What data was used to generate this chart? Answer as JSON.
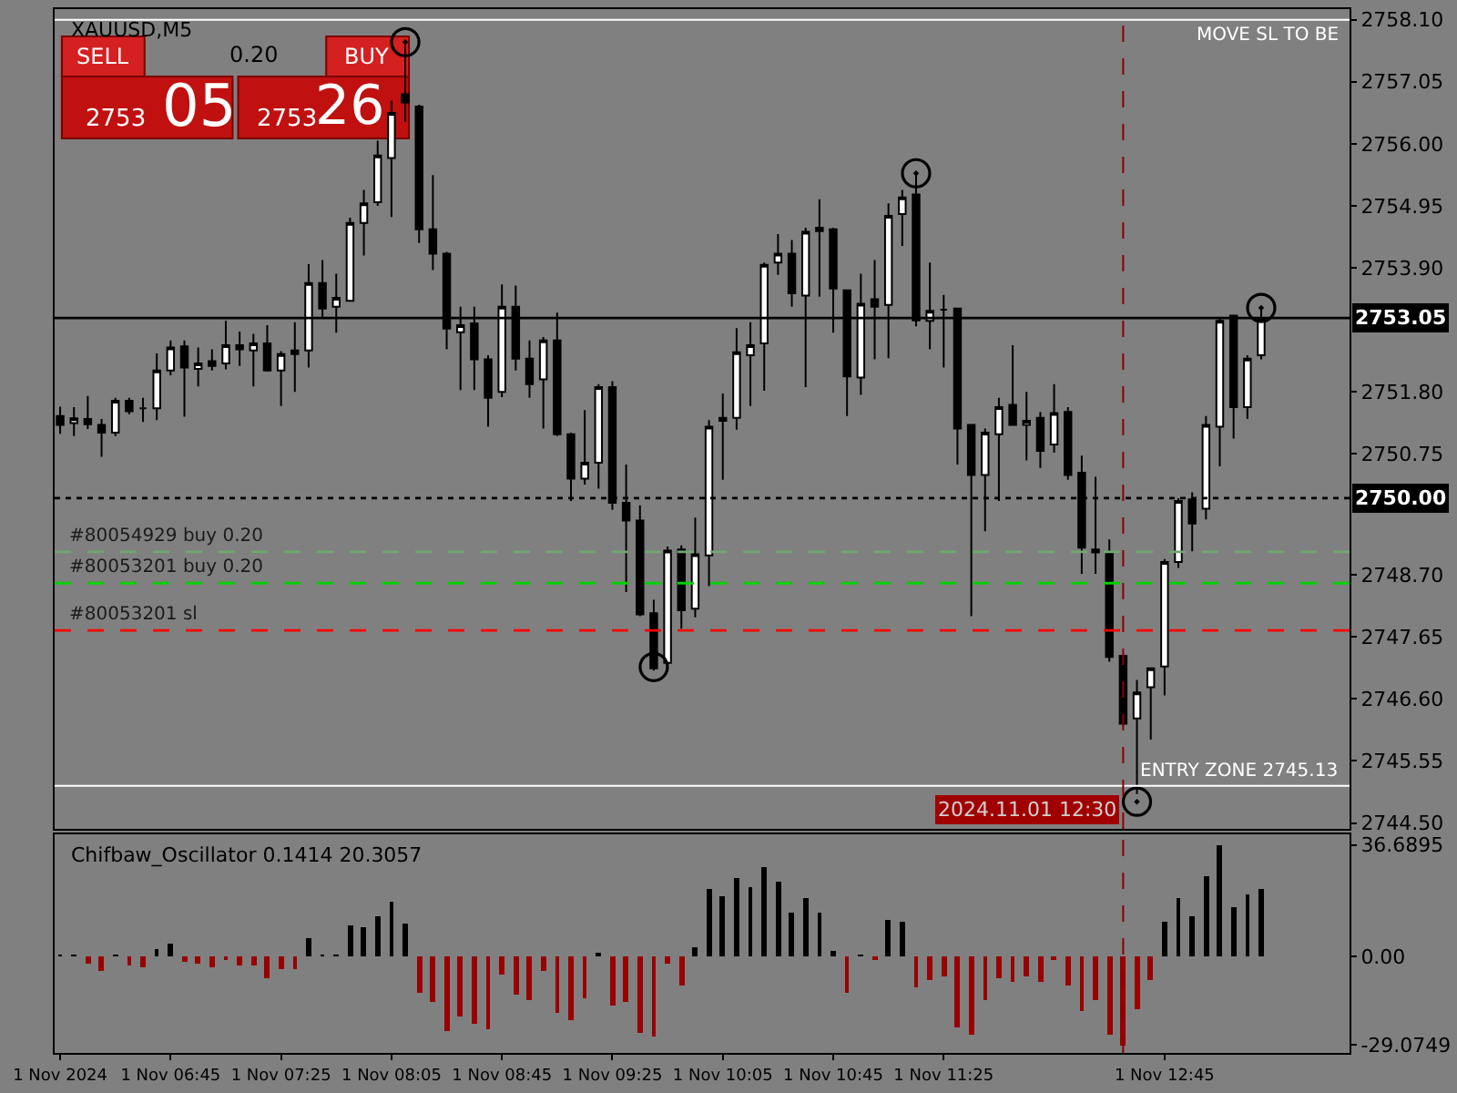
{
  "chart_data": [
    {
      "type": "candlestick",
      "title": "XAUUSD,M5",
      "x": [
        "2024-11-01T06:05",
        "2024-11-01T06:10",
        "2024-11-01T06:15",
        "2024-11-01T06:20",
        "2024-11-01T06:25",
        "2024-11-01T06:30",
        "2024-11-01T06:35",
        "2024-11-01T06:40",
        "2024-11-01T06:45",
        "2024-11-01T06:50",
        "2024-11-01T06:55",
        "2024-11-01T07:00",
        "2024-11-01T07:05",
        "2024-11-01T07:10",
        "2024-11-01T07:15",
        "2024-11-01T07:20",
        "2024-11-01T07:25",
        "2024-11-01T07:30",
        "2024-11-01T07:35",
        "2024-11-01T07:40",
        "2024-11-01T07:45",
        "2024-11-01T07:50",
        "2024-11-01T07:55",
        "2024-11-01T08:00",
        "2024-11-01T08:05",
        "2024-11-01T08:10",
        "2024-11-01T08:15",
        "2024-11-01T08:20",
        "2024-11-01T08:25",
        "2024-11-01T08:30",
        "2024-11-01T08:35",
        "2024-11-01T08:40",
        "2024-11-01T08:45",
        "2024-11-01T08:50",
        "2024-11-01T08:55",
        "2024-11-01T09:00",
        "2024-11-01T09:05",
        "2024-11-01T09:10",
        "2024-11-01T09:15",
        "2024-11-01T09:20",
        "2024-11-01T09:25",
        "2024-11-01T09:30",
        "2024-11-01T09:35",
        "2024-11-01T09:40",
        "2024-11-01T09:45",
        "2024-11-01T09:50",
        "2024-11-01T09:55",
        "2024-11-01T10:00",
        "2024-11-01T10:05",
        "2024-11-01T10:10",
        "2024-11-01T10:15",
        "2024-11-01T10:20",
        "2024-11-01T10:25",
        "2024-11-01T10:30",
        "2024-11-01T10:35",
        "2024-11-01T10:40",
        "2024-11-01T10:45",
        "2024-11-01T10:50",
        "2024-11-01T10:55",
        "2024-11-01T11:00",
        "2024-11-01T11:05",
        "2024-11-01T11:10",
        "2024-11-01T11:15",
        "2024-11-01T11:20",
        "2024-11-01T11:25",
        "2024-11-01T11:30",
        "2024-11-01T11:35",
        "2024-11-01T11:40",
        "2024-11-01T11:45",
        "2024-11-01T11:50",
        "2024-11-01T11:55",
        "2024-11-01T12:00",
        "2024-11-01T12:05",
        "2024-11-01T12:10",
        "2024-11-01T12:15",
        "2024-11-01T12:20",
        "2024-11-01T12:25",
        "2024-11-01T12:30",
        "2024-11-01T12:35",
        "2024-11-01T12:40",
        "2024-11-01T12:45",
        "2024-11-01T12:50",
        "2024-11-01T12:55",
        "2024-11-01T13:00",
        "2024-11-01T13:05",
        "2024-11-01T13:10",
        "2024-11-01T13:15",
        "2024-11-01T13:20"
      ],
      "ohlc": [
        [
          2751.39,
          2751.55,
          2751.09,
          2751.24
        ],
        [
          2751.27,
          2751.54,
          2751.05,
          2751.35
        ],
        [
          2751.34,
          2751.73,
          2751.17,
          2751.25
        ],
        [
          2751.24,
          2751.34,
          2750.7,
          2751.11
        ],
        [
          2751.11,
          2751.7,
          2751.05,
          2751.65
        ],
        [
          2751.65,
          2751.7,
          2751.42,
          2751.47
        ],
        [
          2751.52,
          2751.7,
          2751.29,
          2751.52
        ],
        [
          2751.52,
          2752.45,
          2751.32,
          2752.16
        ],
        [
          2752.16,
          2752.67,
          2752.08,
          2752.55
        ],
        [
          2752.57,
          2752.67,
          2751.38,
          2752.21
        ],
        [
          2752.19,
          2752.55,
          2751.89,
          2752.28
        ],
        [
          2752.32,
          2752.52,
          2752.16,
          2752.24
        ],
        [
          2752.28,
          2753.0,
          2752.18,
          2752.59
        ],
        [
          2752.59,
          2752.82,
          2752.24,
          2752.52
        ],
        [
          2752.5,
          2752.78,
          2751.89,
          2752.62
        ],
        [
          2752.62,
          2752.93,
          2752.14,
          2752.16
        ],
        [
          2752.16,
          2752.49,
          2751.56,
          2752.44
        ],
        [
          2752.44,
          2752.98,
          2751.8,
          2752.5
        ],
        [
          2752.5,
          2753.96,
          2752.21,
          2753.64
        ],
        [
          2753.64,
          2754.03,
          2753.06,
          2753.21
        ],
        [
          2753.24,
          2753.8,
          2752.8,
          2753.39
        ],
        [
          2753.34,
          2754.75,
          2753.34,
          2754.66
        ],
        [
          2754.66,
          2755.22,
          2754.11,
          2754.99
        ],
        [
          2755.01,
          2756.05,
          2754.95,
          2755.8
        ],
        [
          2755.76,
          2756.73,
          2754.76,
          2756.52
        ],
        [
          2756.84,
          2757.69,
          2756.37,
          2756.7
        ],
        [
          2756.63,
          2756.66,
          2754.32,
          2754.55
        ],
        [
          2754.55,
          2755.47,
          2753.86,
          2754.14
        ],
        [
          2754.14,
          2754.17,
          2752.52,
          2752.87
        ],
        [
          2752.81,
          2753.24,
          2751.83,
          2752.93
        ],
        [
          2752.96,
          2753.24,
          2751.83,
          2752.35
        ],
        [
          2752.35,
          2752.42,
          2751.21,
          2751.7
        ],
        [
          2751.8,
          2753.62,
          2751.71,
          2753.24
        ],
        [
          2753.24,
          2753.6,
          2752.16,
          2752.36
        ],
        [
          2752.36,
          2752.67,
          2751.7,
          2751.93
        ],
        [
          2752.01,
          2752.73,
          2751.18,
          2752.67
        ],
        [
          2752.67,
          2753.14,
          2751.05,
          2751.08
        ],
        [
          2751.08,
          2751.11,
          2749.95,
          2750.33
        ],
        [
          2750.33,
          2751.49,
          2750.23,
          2750.6
        ],
        [
          2750.6,
          2751.93,
          2750.16,
          2751.88
        ],
        [
          2751.88,
          2751.98,
          2749.8,
          2749.92
        ],
        [
          2749.92,
          2750.57,
          2748.41,
          2749.62
        ],
        [
          2749.62,
          2749.88,
          2748.0,
          2748.03
        ],
        [
          2748.05,
          2748.28,
          2747.08,
          2747.12
        ],
        [
          2747.21,
          2749.18,
          2747.18,
          2749.11
        ],
        [
          2749.13,
          2749.2,
          2747.79,
          2748.1
        ],
        [
          2748.13,
          2749.67,
          2747.98,
          2749.05
        ],
        [
          2749.03,
          2751.32,
          2748.51,
          2751.21
        ],
        [
          2751.31,
          2751.77,
          2750.31,
          2751.36
        ],
        [
          2751.36,
          2752.88,
          2751.16,
          2752.47
        ],
        [
          2752.42,
          2752.98,
          2751.56,
          2752.59
        ],
        [
          2752.62,
          2753.99,
          2751.82,
          2753.95
        ],
        [
          2753.99,
          2754.47,
          2753.78,
          2754.14
        ],
        [
          2754.14,
          2754.37,
          2753.24,
          2753.47
        ],
        [
          2753.43,
          2754.58,
          2751.88,
          2754.51
        ],
        [
          2754.58,
          2755.06,
          2753.41,
          2754.52
        ],
        [
          2754.55,
          2754.58,
          2752.8,
          2753.55
        ],
        [
          2753.52,
          2753.52,
          2751.39,
          2752.06
        ],
        [
          2752.04,
          2753.8,
          2751.75,
          2753.29
        ],
        [
          2753.37,
          2754.03,
          2752.35,
          2753.24
        ],
        [
          2753.27,
          2754.99,
          2752.37,
          2754.78
        ],
        [
          2754.81,
          2755.22,
          2754.27,
          2755.09
        ],
        [
          2755.14,
          2755.5,
          2752.91,
          2753.01
        ],
        [
          2753.0,
          2753.99,
          2752.52,
          2753.17
        ],
        [
          2753.19,
          2753.44,
          2752.21,
          2753.19
        ],
        [
          2753.21,
          2753.21,
          2750.57,
          2751.18
        ],
        [
          2751.24,
          2751.24,
          2748.0,
          2750.39
        ],
        [
          2750.39,
          2751.18,
          2749.44,
          2751.11
        ],
        [
          2751.08,
          2751.7,
          2749.95,
          2751.54
        ],
        [
          2751.58,
          2752.59,
          2751.24,
          2751.24
        ],
        [
          2751.24,
          2751.8,
          2750.64,
          2751.31
        ],
        [
          2751.36,
          2751.46,
          2750.51,
          2750.8
        ],
        [
          2750.91,
          2751.93,
          2750.77,
          2751.44
        ],
        [
          2751.46,
          2751.54,
          2750.31,
          2750.39
        ],
        [
          2750.43,
          2750.72,
          2748.72,
          2749.16
        ],
        [
          2749.13,
          2750.36,
          2748.72,
          2749.08
        ],
        [
          2749.08,
          2749.3,
          2747.23,
          2747.31
        ],
        [
          2747.33,
          2747.35,
          2746.15,
          2746.18
        ],
        [
          2746.27,
          2746.92,
          2744.99,
          2746.71
        ],
        [
          2746.8,
          2747.12,
          2745.91,
          2747.12
        ],
        [
          2747.15,
          2748.97,
          2746.66,
          2748.92
        ],
        [
          2748.92,
          2750.0,
          2748.82,
          2749.95
        ],
        [
          2749.98,
          2750.1,
          2749.1,
          2749.57
        ],
        [
          2749.82,
          2751.39,
          2749.64,
          2751.24
        ],
        [
          2751.21,
          2753.06,
          2750.54,
          2753.0
        ],
        [
          2753.09,
          2753.1,
          2751.01,
          2751.54
        ],
        [
          2751.54,
          2752.42,
          2751.34,
          2752.36
        ],
        [
          2752.42,
          2753.19,
          2752.35,
          2753.05
        ]
      ],
      "series": [
        {
          "type": "scatter",
          "color": "#000000",
          "marker": "circle",
          "x": [
            "2024-11-01T08:10",
            "2024-11-01T09:40",
            "2024-11-01T11:15",
            "2024-11-01T12:35",
            "2024-11-01T13:20"
          ],
          "values": [
            2757.72,
            2747.14,
            2755.5,
            2744.86,
            2753.22
          ]
        }
      ],
      "xlim": [
        "2024-11-01T06:03",
        "2024-11-01T13:52"
      ],
      "ylim": [
        2744.4,
        2758.28
      ],
      "yticks": [
        {
          "value": 2758.1,
          "label": "2758.10"
        },
        {
          "value": 2757.05,
          "label": "2757.05"
        },
        {
          "value": 2756.0,
          "label": "2756.00"
        },
        {
          "value": 2754.95,
          "label": "2754.95"
        },
        {
          "value": 2753.9,
          "label": "2753.90"
        },
        {
          "value": 2751.8,
          "label": "2751.80"
        },
        {
          "value": 2750.75,
          "label": "2750.75"
        },
        {
          "value": 2748.7,
          "label": "2748.70"
        },
        {
          "value": 2747.65,
          "label": "2747.65"
        },
        {
          "value": 2746.6,
          "label": "2746.60"
        },
        {
          "value": 2745.55,
          "label": "2745.55"
        },
        {
          "value": 2744.5,
          "label": "2744.50"
        }
      ],
      "ref_lines": [
        {
          "axis": "y",
          "value": 2758.1,
          "label": "MOVE SL TO BE",
          "color": "#ffffff",
          "line_style": "solid"
        },
        {
          "axis": "y",
          "value": 2745.13,
          "label": "ENTRY ZONE 2745.13",
          "color": "#ffffff",
          "line_style": "solid"
        },
        {
          "axis": "y",
          "value": 2753.05,
          "label": "2753.05",
          "color": "#000000",
          "line_style": "solid"
        },
        {
          "axis": "y",
          "value": 2750.0,
          "label": "2750.00",
          "color": "#000000",
          "line_style": "dotted"
        },
        {
          "axis": "y",
          "value": 2749.09,
          "label": "#80054929 buy 0.20",
          "color": "#6fa86f",
          "line_style": "dashed"
        },
        {
          "axis": "y",
          "value": 2748.56,
          "label": "#80053201 buy 0.20",
          "color": "#00d000",
          "line_style": "dashed"
        },
        {
          "axis": "y",
          "value": 2747.76,
          "label": "#80053201 sl",
          "color": "#ff0000",
          "line_style": "dashed"
        },
        {
          "axis": "x",
          "value": "2024-11-01T12:30",
          "label": "2024.11.01 12:30",
          "color": "#8b0000",
          "line_style": "dashed"
        }
      ],
      "annotations": [
        "SELL",
        "0.20",
        "BUY",
        "2753",
        "05",
        "2753",
        "26"
      ],
      "tick_labels": "y",
      "grid": false
    },
    {
      "type": "bar",
      "title": "Chifbaw_Oscillator 0.1414 20.3057",
      "x": [
        "2024-11-01T06:05",
        "2024-11-01T06:10",
        "2024-11-01T06:15",
        "2024-11-01T06:20",
        "2024-11-01T06:25",
        "2024-11-01T06:30",
        "2024-11-01T06:35",
        "2024-11-01T06:40",
        "2024-11-01T06:45",
        "2024-11-01T06:50",
        "2024-11-01T06:55",
        "2024-11-01T07:00",
        "2024-11-01T07:05",
        "2024-11-01T07:10",
        "2024-11-01T07:15",
        "2024-11-01T07:20",
        "2024-11-01T07:25",
        "2024-11-01T07:30",
        "2024-11-01T07:35",
        "2024-11-01T07:40",
        "2024-11-01T07:45",
        "2024-11-01T07:50",
        "2024-11-01T07:55",
        "2024-11-01T08:00",
        "2024-11-01T08:05",
        "2024-11-01T08:10",
        "2024-11-01T08:15",
        "2024-11-01T08:20",
        "2024-11-01T08:25",
        "2024-11-01T08:30",
        "2024-11-01T08:35",
        "2024-11-01T08:40",
        "2024-11-01T08:45",
        "2024-11-01T08:50",
        "2024-11-01T08:55",
        "2024-11-01T09:00",
        "2024-11-01T09:05",
        "2024-11-01T09:10",
        "2024-11-01T09:15",
        "2024-11-01T09:20",
        "2024-11-01T09:25",
        "2024-11-01T09:30",
        "2024-11-01T09:35",
        "2024-11-01T09:40",
        "2024-11-01T09:45",
        "2024-11-01T09:50",
        "2024-11-01T09:55",
        "2024-11-01T10:00",
        "2024-11-01T10:05",
        "2024-11-01T10:10",
        "2024-11-01T10:15",
        "2024-11-01T10:20",
        "2024-11-01T10:25",
        "2024-11-01T10:30",
        "2024-11-01T10:35",
        "2024-11-01T10:40",
        "2024-11-01T10:45",
        "2024-11-01T10:50",
        "2024-11-01T10:55",
        "2024-11-01T11:00",
        "2024-11-01T11:05",
        "2024-11-01T11:10",
        "2024-11-01T11:15",
        "2024-11-01T11:20",
        "2024-11-01T11:25",
        "2024-11-01T11:30",
        "2024-11-01T11:35",
        "2024-11-01T11:40",
        "2024-11-01T11:45",
        "2024-11-01T11:50",
        "2024-11-01T11:55",
        "2024-11-01T12:00",
        "2024-11-01T12:05",
        "2024-11-01T12:10",
        "2024-11-01T12:15",
        "2024-11-01T12:20",
        "2024-11-01T12:25",
        "2024-11-01T12:30",
        "2024-11-01T12:35",
        "2024-11-01T12:40",
        "2024-11-01T12:45",
        "2024-11-01T12:50",
        "2024-11-01T12:55",
        "2024-11-01T13:00",
        "2024-11-01T13:05",
        "2024-11-01T13:10",
        "2024-11-01T13:15",
        "2024-11-01T13:20"
      ],
      "values": [
        0.2,
        0.2,
        -2.4,
        -4.6,
        0.3,
        -3.0,
        -3.4,
        2.6,
        4.4,
        -1.8,
        -2.4,
        -3.4,
        -1.2,
        -2.8,
        -2.8,
        -7.0,
        -4.0,
        -4.0,
        6.0,
        0.3,
        0.3,
        10.4,
        9.6,
        13.2,
        18.0,
        10.8,
        -12.0,
        -15.0,
        -24.4,
        -19.6,
        -22.2,
        -23.8,
        -6.0,
        -12.4,
        -14.2,
        -4.6,
        -18.4,
        -21.0,
        -13.6,
        1.2,
        -16.0,
        -15.0,
        -25.0,
        -26.2,
        -2.2,
        -9.4,
        3.0,
        22.2,
        19.8,
        26.0,
        22.6,
        29.6,
        24.8,
        14.2,
        19.4,
        14.6,
        2.0,
        -12.2,
        0.6,
        -0.8,
        12.2,
        11.6,
        -10.4,
        -8.0,
        -6.8,
        -23.6,
        -26.0,
        -14.6,
        -7.2,
        -8.6,
        -6.4,
        -8.6,
        -0.8,
        -9.8,
        -18.2,
        -14.2,
        -26.0,
        -29.1,
        -17.2,
        -8.0,
        11.6,
        19.4,
        13.4,
        26.2,
        36.7,
        16.4,
        20.6,
        22.4
      ],
      "colors": [
        "#000000",
        "#000000",
        "#990000",
        "#990000",
        "#000000",
        "#990000",
        "#990000",
        "#000000",
        "#000000",
        "#990000",
        "#990000",
        "#990000",
        "#990000",
        "#990000",
        "#990000",
        "#990000",
        "#990000",
        "#990000",
        "#000000",
        "#000000",
        "#000000",
        "#000000",
        "#000000",
        "#000000",
        "#000000",
        "#000000",
        "#990000",
        "#990000",
        "#990000",
        "#990000",
        "#990000",
        "#990000",
        "#990000",
        "#990000",
        "#990000",
        "#990000",
        "#990000",
        "#990000",
        "#990000",
        "#000000",
        "#990000",
        "#990000",
        "#990000",
        "#990000",
        "#990000",
        "#990000",
        "#000000",
        "#000000",
        "#000000",
        "#000000",
        "#000000",
        "#000000",
        "#000000",
        "#000000",
        "#000000",
        "#000000",
        "#000000",
        "#990000",
        "#000000",
        "#990000",
        "#000000",
        "#000000",
        "#990000",
        "#990000",
        "#990000",
        "#990000",
        "#990000",
        "#990000",
        "#990000",
        "#990000",
        "#990000",
        "#990000",
        "#990000",
        "#990000",
        "#990000",
        "#990000",
        "#990000",
        "#990000",
        "#990000",
        "#990000",
        "#000000",
        "#000000",
        "#000000",
        "#000000",
        "#000000",
        "#000000",
        "#000000",
        "#000000"
      ],
      "xlim": [
        "2024-11-01T06:03",
        "2024-11-01T13:52"
      ],
      "xticks": [
        {
          "value": "2024-11-01T06:05",
          "label": "1 Nov 2024"
        },
        {
          "value": "2024-11-01T06:45",
          "label": "1 Nov 06:45"
        },
        {
          "value": "2024-11-01T07:25",
          "label": "1 Nov 07:25"
        },
        {
          "value": "2024-11-01T08:05",
          "label": "1 Nov 08:05"
        },
        {
          "value": "2024-11-01T08:45",
          "label": "1 Nov 08:45"
        },
        {
          "value": "2024-11-01T09:25",
          "label": "1 Nov 09:25"
        },
        {
          "value": "2024-11-01T10:05",
          "label": "1 Nov 10:05"
        },
        {
          "value": "2024-11-01T10:45",
          "label": "1 Nov 10:45"
        },
        {
          "value": "2024-11-01T11:25",
          "label": "1 Nov 11:25"
        },
        {
          "value": "2024-11-01T12:45",
          "label": "1 Nov 12:45"
        }
      ],
      "ylim": [
        -31.8,
        40.2
      ],
      "yticks": [
        36.6895,
        {
          "value": 0,
          "label": "0.00"
        },
        -29.0749
      ],
      "ref_lines": [
        {
          "axis": "x",
          "value": "2024-11-01T12:30",
          "color": "#8b0000",
          "line_style": "dashed"
        }
      ],
      "grid": false
    }
  ]
}
